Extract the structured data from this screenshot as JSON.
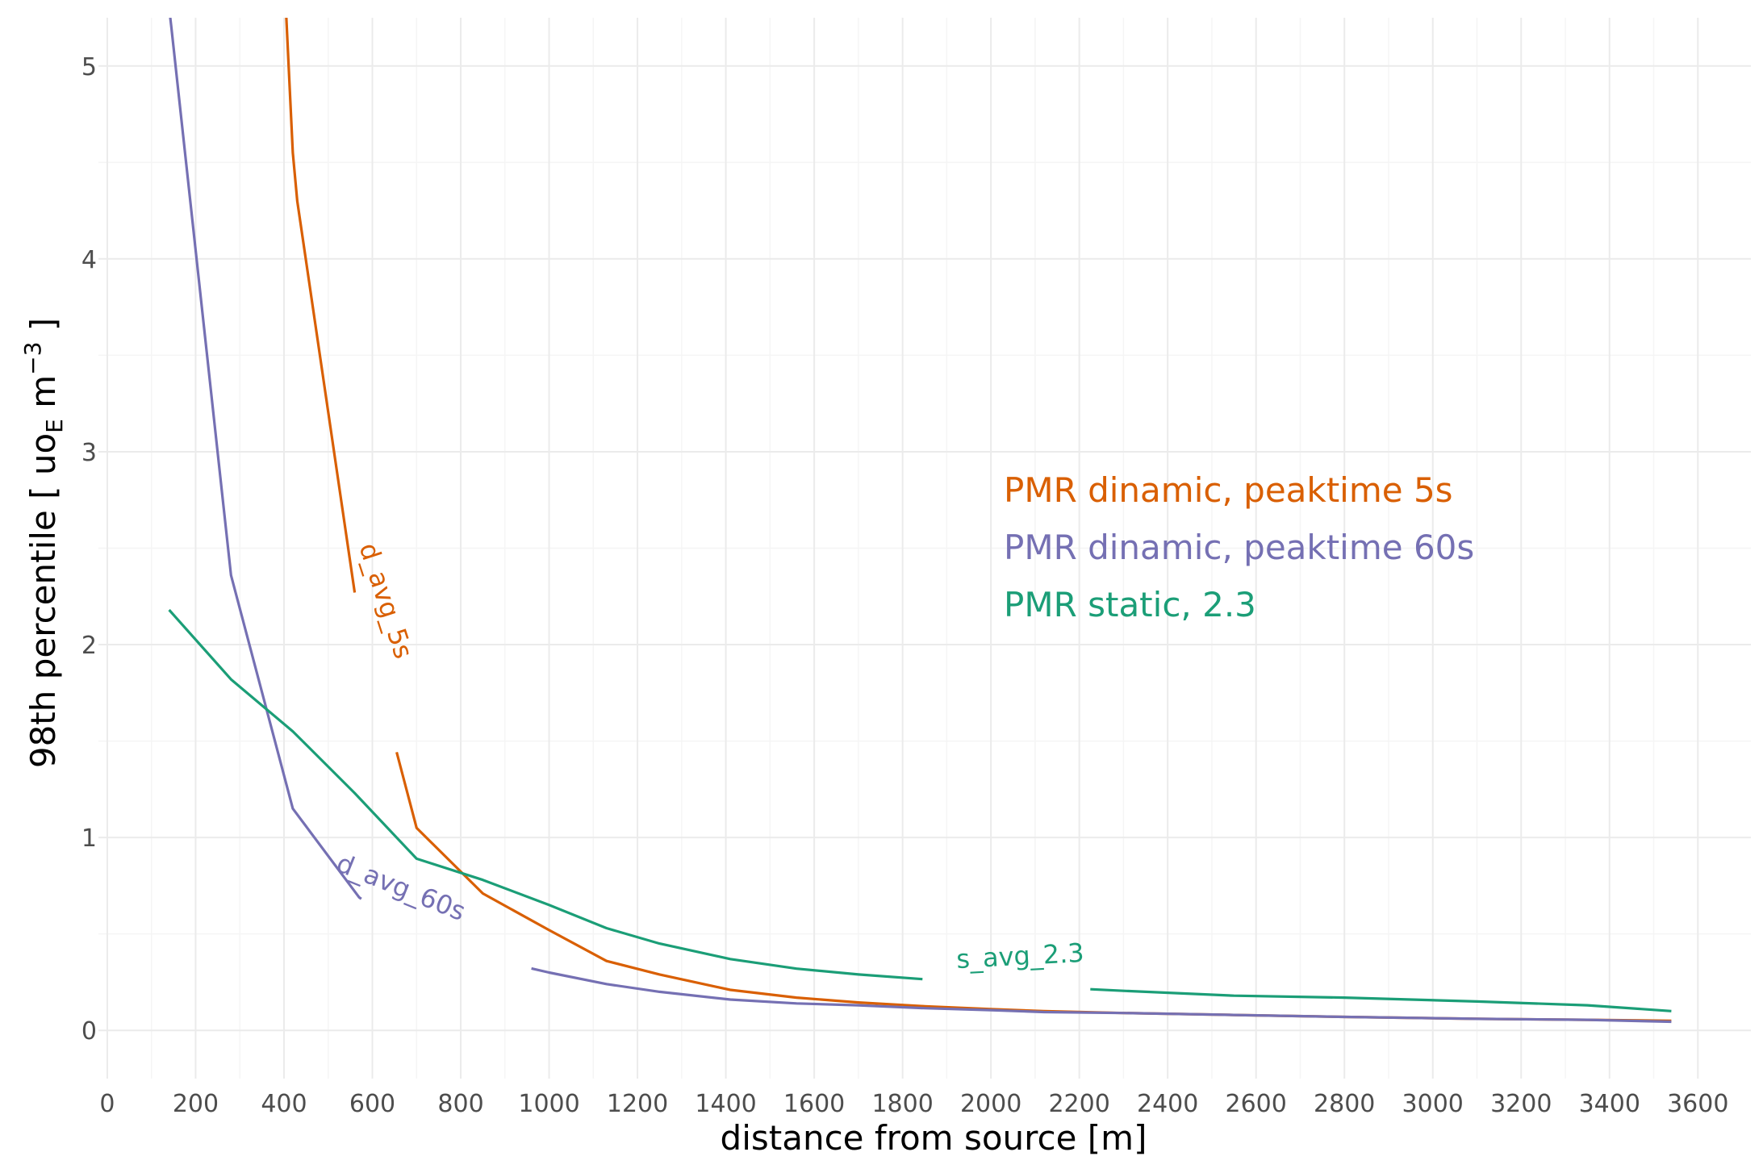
{
  "chart_data": {
    "type": "line",
    "xlabel": "distance from source [m]",
    "ylabel": {
      "prefix": "98th percentile [ uo",
      "sub": "E",
      "mid": " m",
      "sup": "−3",
      "suffix": " ]"
    },
    "xlim": [
      -20,
      3720
    ],
    "ylim": [
      -0.25,
      5.25
    ],
    "x_ticks": [
      0,
      200,
      400,
      600,
      800,
      1000,
      1200,
      1400,
      1600,
      1800,
      2000,
      2200,
      2400,
      2600,
      2800,
      3000,
      3200,
      3400,
      3600
    ],
    "y_ticks": [
      0,
      1,
      2,
      3,
      4,
      5
    ],
    "grid": true,
    "series": [
      {
        "name": "PMR dinamic, peaktime 5s",
        "label": "d_avg_5s",
        "color": "#D95F02",
        "x": [
          400,
          420,
          430,
          560,
          700,
          850,
          1000,
          1130,
          1250,
          1410,
          1560,
          1700,
          1850,
          2000,
          2120,
          2300,
          2550,
          2800,
          3100,
          3350,
          3540
        ],
        "y": [
          5.5,
          4.55,
          4.3,
          2.27,
          1.05,
          0.71,
          0.52,
          0.36,
          0.29,
          0.21,
          0.17,
          0.145,
          0.125,
          0.11,
          0.1,
          0.09,
          0.08,
          0.07,
          0.06,
          0.055,
          0.05
        ]
      },
      {
        "name": "PMR dinamic, peaktime 60s",
        "label": "d_avg_60s",
        "color": "#7570B3",
        "x": [
          130,
          145,
          280,
          420,
          570,
          700,
          850,
          1000,
          1130,
          1250,
          1410,
          1560,
          1700,
          1850,
          2000,
          2120,
          2300,
          2550,
          2800,
          3100,
          3350,
          3540
        ],
        "y": [
          5.5,
          5.2,
          2.36,
          1.15,
          0.69,
          0.48,
          0.38,
          0.3,
          0.24,
          0.2,
          0.16,
          0.14,
          0.13,
          0.115,
          0.105,
          0.095,
          0.09,
          0.08,
          0.07,
          0.06,
          0.055,
          0.045
        ]
      },
      {
        "name": "PMR static, 2.3",
        "label": "s_avg_2.3",
        "color": "#1B9E77",
        "x": [
          140,
          280,
          420,
          560,
          700,
          850,
          1000,
          1130,
          1250,
          1410,
          1560,
          1700,
          1850,
          2000,
          2120,
          2300,
          2550,
          2800,
          3100,
          3350,
          3540
        ],
        "y": [
          2.18,
          1.82,
          1.55,
          1.23,
          0.89,
          0.78,
          0.65,
          0.53,
          0.45,
          0.37,
          0.32,
          0.29,
          0.265,
          0.24,
          0.225,
          0.205,
          0.18,
          0.17,
          0.15,
          0.13,
          0.1
        ]
      }
    ]
  }
}
